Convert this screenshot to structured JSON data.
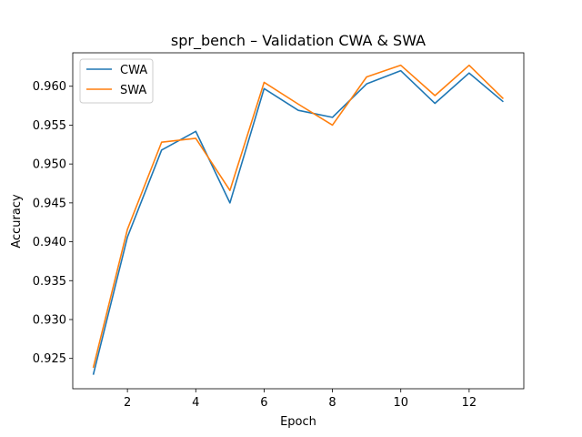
{
  "chart_data": {
    "type": "line",
    "title": "spr_bench – Validation CWA & SWA",
    "xlabel": "Epoch",
    "ylabel": "Accuracy",
    "x": [
      1,
      2,
      3,
      4,
      5,
      6,
      7,
      8,
      9,
      10,
      11,
      12,
      13
    ],
    "xlim": [
      0.4,
      13.6
    ],
    "ylim": [
      0.9211,
      0.9643
    ],
    "xticks": [
      2,
      4,
      6,
      8,
      10,
      12
    ],
    "yticks": [
      0.925,
      0.93,
      0.935,
      0.94,
      0.945,
      0.95,
      0.955,
      0.96
    ],
    "ytick_labels": [
      "0.925",
      "0.930",
      "0.935",
      "0.940",
      "0.945",
      "0.950",
      "0.955",
      "0.960"
    ],
    "grid": false,
    "legend_position": "top-left",
    "series": [
      {
        "name": "CWA",
        "color": "#1f77b4",
        "values": [
          0.9229,
          0.9406,
          0.9518,
          0.9542,
          0.945,
          0.9597,
          0.9569,
          0.956,
          0.9603,
          0.962,
          0.9578,
          0.9617,
          0.958
        ]
      },
      {
        "name": "SWA",
        "color": "#ff7f0e",
        "values": [
          0.9238,
          0.9416,
          0.9528,
          0.9533,
          0.9466,
          0.9605,
          0.9577,
          0.955,
          0.9612,
          0.9627,
          0.9588,
          0.9627,
          0.9584
        ]
      }
    ]
  }
}
